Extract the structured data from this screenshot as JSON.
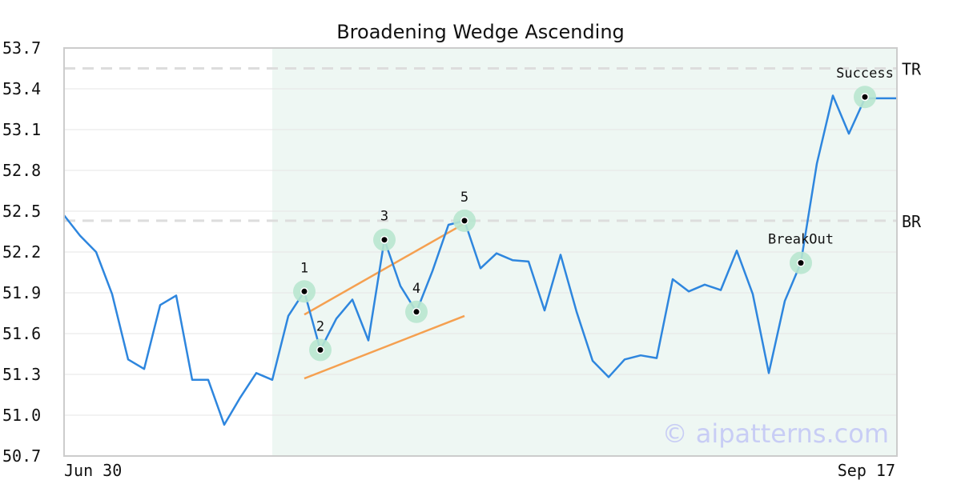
{
  "chart_data": {
    "type": "line",
    "title": "Broadening Wedge Ascending",
    "xlabel": "",
    "ylabel": "",
    "ylim": [
      50.7,
      53.7
    ],
    "yticks": [
      "53.7",
      "53.4",
      "53.1",
      "52.8",
      "52.5",
      "52.2",
      "51.9",
      "51.6",
      "51.3",
      "51.0",
      "50.7"
    ],
    "xtick_labels": [
      "Jun 30",
      "Sep 17"
    ],
    "grid": true,
    "series": [
      {
        "color": "#2e86de",
        "values": [
          52.47,
          52.32,
          52.2,
          51.89,
          51.41,
          51.34,
          51.81,
          51.88,
          51.26,
          51.26,
          50.93,
          51.13,
          51.31,
          51.26,
          51.73,
          51.91,
          51.48,
          51.71,
          51.85,
          51.55,
          52.29,
          51.95,
          51.76,
          52.06,
          52.4,
          52.43,
          52.08,
          52.19,
          52.14,
          52.13,
          51.77,
          52.18,
          51.76,
          51.4,
          51.28,
          51.41,
          51.44,
          51.42,
          52.0,
          51.91,
          51.96,
          51.92,
          52.21,
          51.89,
          51.31,
          51.84,
          52.12,
          52.85,
          53.35,
          53.07,
          53.33,
          53.33,
          53.33
        ]
      }
    ],
    "shaded_range": [
      13,
      52
    ],
    "reference_lines": [
      {
        "label": "TR",
        "y": 53.55
      },
      {
        "label": "BR",
        "y": 52.43
      }
    ],
    "trend_lines": [
      {
        "x1": 15,
        "y1": 51.74,
        "x2": 25,
        "y2": 52.41,
        "color": "#f5a050"
      },
      {
        "x1": 15,
        "y1": 51.27,
        "x2": 25,
        "y2": 51.73,
        "color": "#f5a050"
      }
    ],
    "points": [
      {
        "label": "1",
        "x": 15,
        "y": 51.91
      },
      {
        "label": "2",
        "x": 16,
        "y": 51.48
      },
      {
        "label": "3",
        "x": 20,
        "y": 52.29
      },
      {
        "label": "4",
        "x": 22,
        "y": 51.76
      },
      {
        "label": "5",
        "x": 25,
        "y": 52.43
      },
      {
        "label": "BreakOut",
        "x": 46,
        "y": 52.12
      },
      {
        "label": "Success",
        "x": 50,
        "y": 53.34
      }
    ],
    "watermark": "© aipatterns.com"
  },
  "colors": {
    "line": "#2e86de",
    "shade": "#eef7f3",
    "marker_ring": "#b8e6cf",
    "trend": "#f5a050",
    "reference": "#dddddd",
    "grid": "#e6e6e6",
    "axis": "#cccccc"
  }
}
